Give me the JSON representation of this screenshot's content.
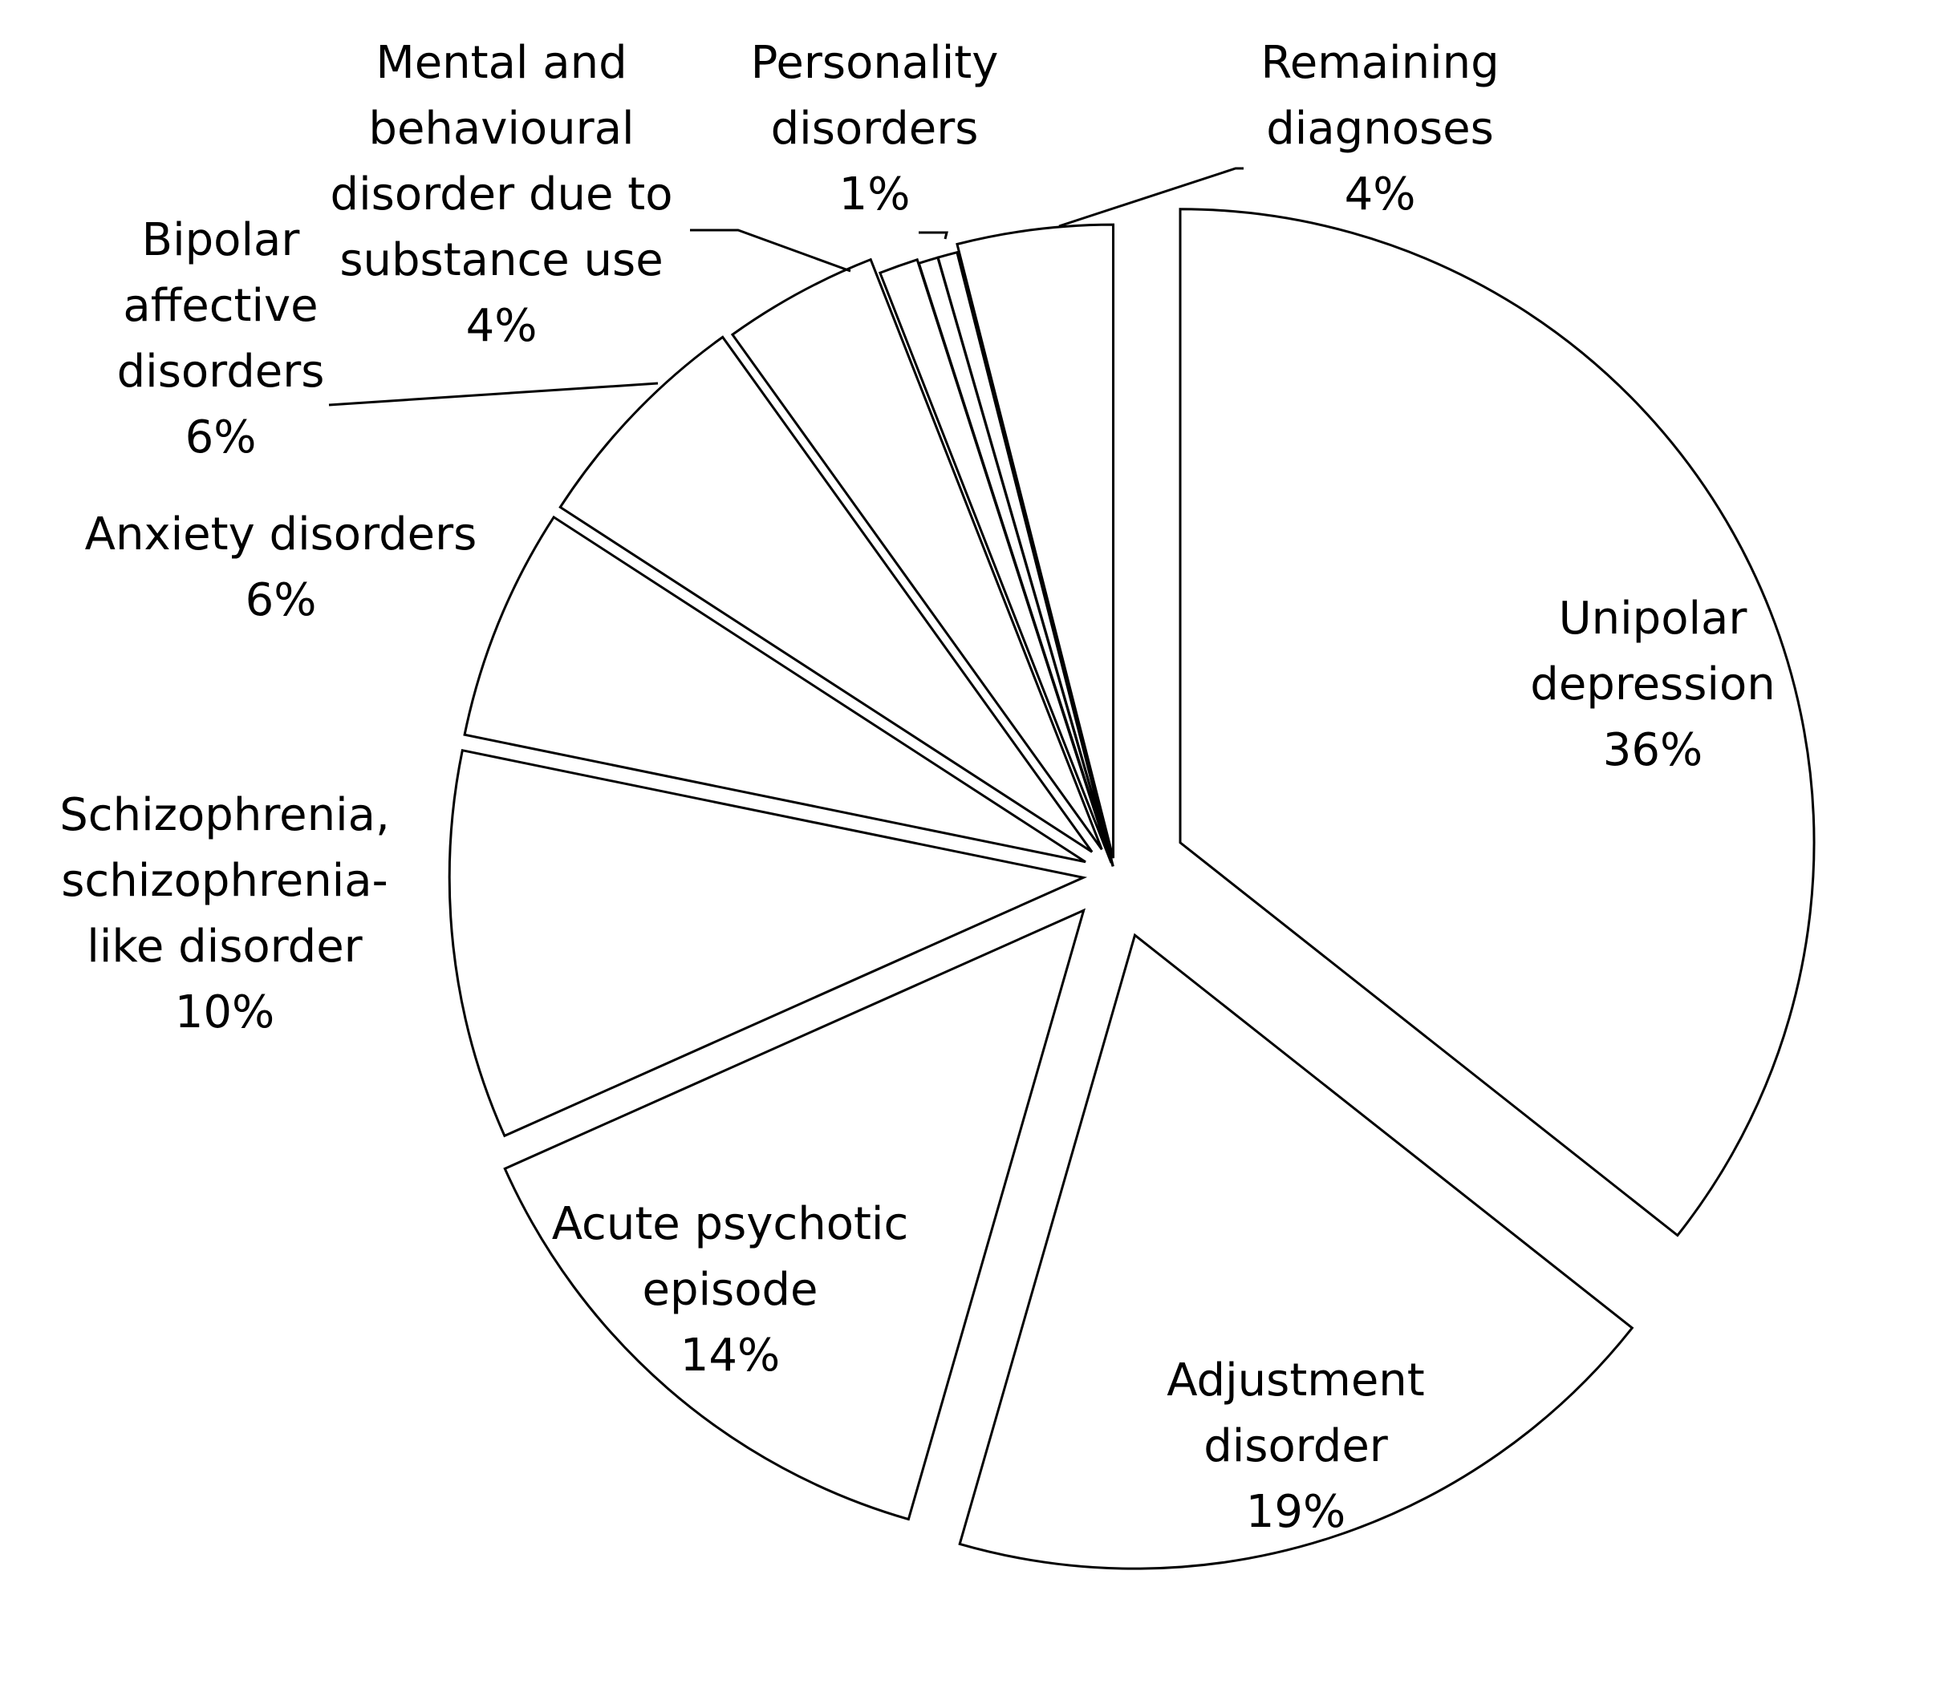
{
  "chart_data": {
    "type": "pie",
    "slices": [
      {
        "label": [
          "Unipolar",
          "depression"
        ],
        "pct_text": "36%",
        "value": 36
      },
      {
        "label": [
          "Adjustment",
          "disorder"
        ],
        "pct_text": "19%",
        "value": 19
      },
      {
        "label": [
          "Acute psychotic",
          "episode"
        ],
        "pct_text": "14%",
        "value": 14
      },
      {
        "label": [
          "Schizophrenia,",
          "schizophrenia-",
          "like disorder"
        ],
        "pct_text": "10%",
        "value": 10
      },
      {
        "label": [
          "Anxiety disorders"
        ],
        "pct_text": "6%",
        "value": 6
      },
      {
        "label": [
          "Bipolar",
          "affective",
          "disorders"
        ],
        "pct_text": "6%",
        "value": 6
      },
      {
        "label": [
          "Mental and",
          "behavioural",
          "disorder due to",
          "substance use"
        ],
        "pct_text": "4%",
        "value": 4
      },
      {
        "label": [
          "Personality",
          "disorders"
        ],
        "pct_text": "1%",
        "value": 1
      },
      {
        "label": [],
        "pct_text": "",
        "value": 0.5
      },
      {
        "label": [],
        "pct_text": "",
        "value": 0.5
      },
      {
        "label": [
          "Remaining",
          "diagnoses"
        ],
        "pct_text": "4%",
        "value": 4
      }
    ],
    "legend": "none",
    "colors": {
      "fill": "#ffffff",
      "stroke": "#000000"
    }
  }
}
